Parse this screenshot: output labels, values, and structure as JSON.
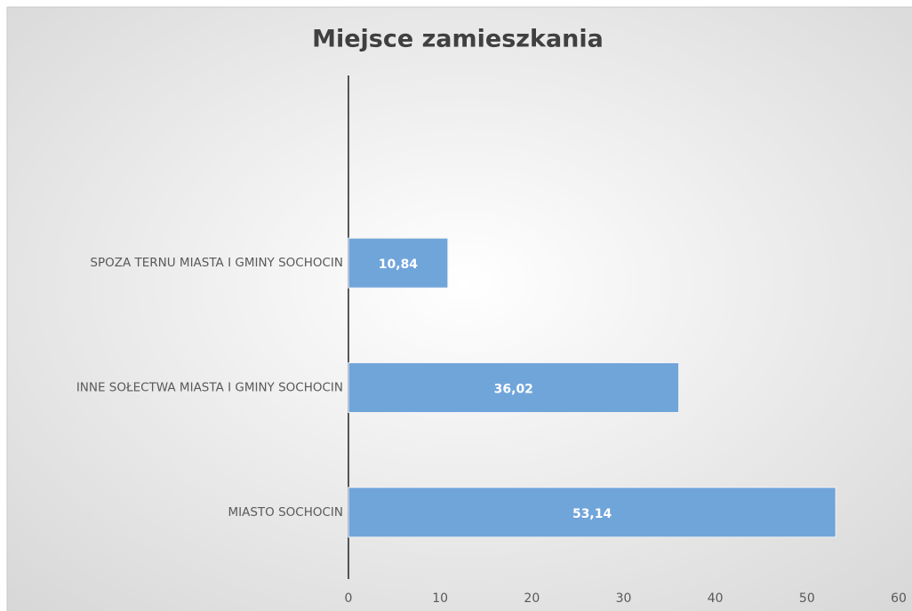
{
  "chart_data": {
    "type": "barh",
    "title": "Miejsce zamieszkania",
    "categories": [
      "SPOZA TERNU MIASTA I GMINY SOCHOCIN",
      "INNE SOŁECTWA MIASTA I GMINY SOCHOCIN",
      "MIASTO SOCHOCIN"
    ],
    "values": [
      10.84,
      36.02,
      53.14
    ],
    "value_labels": [
      "10,84",
      "36,02",
      "53,14"
    ],
    "color": "#70a5da",
    "xlim": [
      0,
      60
    ],
    "xticks": [
      0,
      10,
      20,
      30,
      40,
      50,
      60
    ],
    "grid": false
  }
}
